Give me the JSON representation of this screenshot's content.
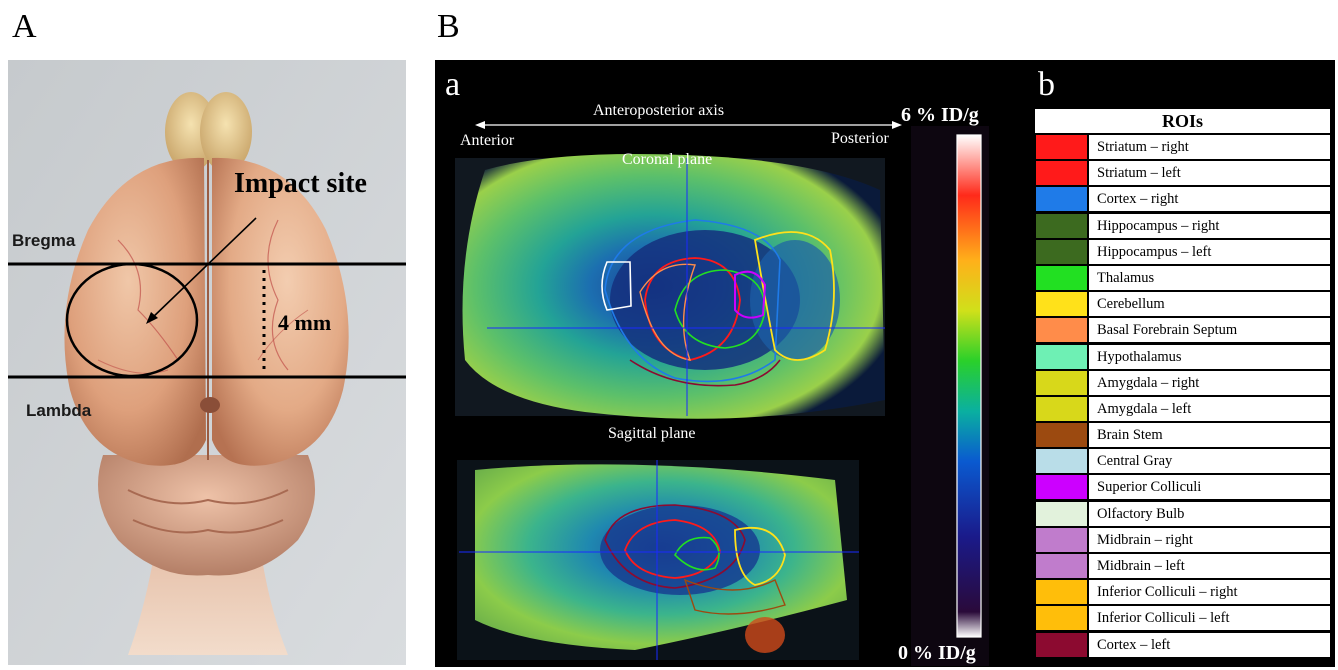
{
  "panels": {
    "A": "A",
    "B": "B",
    "a": "a",
    "b": "b"
  },
  "photo": {
    "impact_label": "Impact site",
    "bregma_label": "Bregma",
    "lambda_label": "Lambda",
    "distance_label": "4 mm"
  },
  "pet": {
    "axis_label": "Anteroposterior axis",
    "anterior": "Anterior",
    "posterior": "Posterior",
    "coronal": "Coronal plane",
    "sagittal": "Sagittal plane"
  },
  "scale": {
    "max_label": "6 % ID/g",
    "min_label": "0 % ID/g"
  },
  "legend": {
    "title": "ROIs",
    "items": [
      {
        "label": "Striatum – right",
        "color": "#ff1a1a"
      },
      {
        "label": "Striatum – left",
        "color": "#ff1a1a"
      },
      {
        "label": "Cortex – right",
        "color": "#1f7be8"
      },
      {
        "label": "Hippocampus – right",
        "color": "#3c6a1f"
      },
      {
        "label": "Hippocampus – left",
        "color": "#3c6a1f"
      },
      {
        "label": "Thalamus",
        "color": "#22e022"
      },
      {
        "label": "Cerebellum",
        "color": "#ffe11a"
      },
      {
        "label": "Basal Forebrain Septum",
        "color": "#ff8c4a"
      },
      {
        "label": "Hypothalamus",
        "color": "#6ef0b4"
      },
      {
        "label": "Amygdala – right",
        "color": "#d8d81a"
      },
      {
        "label": "Amygdala – left",
        "color": "#d8d81a"
      },
      {
        "label": "Brain Stem",
        "color": "#9c4a10"
      },
      {
        "label": "Central Gray",
        "color": "#b9dde8"
      },
      {
        "label": "Superior Colliculi",
        "color": "#cc00ff"
      },
      {
        "label": "Olfactory Bulb",
        "color": "#e2f2dc"
      },
      {
        "label": "Midbrain – right",
        "color": "#c07ccc"
      },
      {
        "label": "Midbrain – left",
        "color": "#c07ccc"
      },
      {
        "label": "Inferior Colliculi – right",
        "color": "#ffbe0a"
      },
      {
        "label": "Inferior Colliculi – left",
        "color": "#ffbe0a"
      },
      {
        "label": "Cortex – left",
        "color": "#8c0a30"
      }
    ]
  }
}
